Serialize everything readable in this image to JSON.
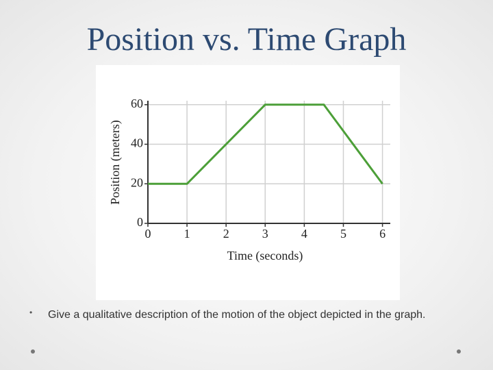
{
  "slide": {
    "title": "Position vs. Time Graph",
    "bullet": "Give a qualitative description of the motion of the object depicted in the graph."
  },
  "chart_data": {
    "type": "line",
    "x_label": "Time (seconds)",
    "y_label": "Position (meters)",
    "x": [
      0,
      1,
      3,
      4.5,
      6
    ],
    "values": [
      20,
      20,
      60,
      60,
      20
    ],
    "color": "#4c9f38",
    "xlim": [
      0,
      6.2
    ],
    "xticks": [
      0,
      1,
      2,
      3,
      4,
      5,
      6
    ],
    "ylim": [
      0,
      62
    ],
    "yticks": [
      0,
      20,
      40,
      60
    ],
    "grid": true
  }
}
